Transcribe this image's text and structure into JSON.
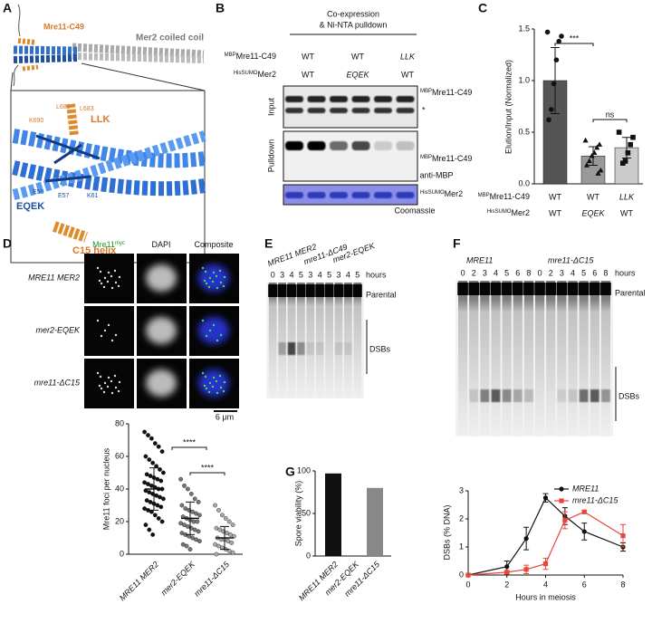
{
  "panels": {
    "A": {
      "label": "A",
      "mre11": "Mre11-C49",
      "mer2": "Mer2 coiled coil",
      "llk": "LLK",
      "eqek": "EQEK",
      "c15": "C15 helix",
      "residues": [
        "L686",
        "L683",
        "K690",
        "E50",
        "E57",
        "K61"
      ]
    },
    "B": {
      "label": "B",
      "header": [
        "Co-expression",
        "& Ni-NTA pulldown"
      ],
      "row1": {
        "sup": "MBP",
        "name": "Mre11-C49",
        "lanes": [
          "WT",
          "WT",
          "LLK"
        ]
      },
      "row2": {
        "sup": "HisSUMO",
        "name": "Mer2",
        "lanes": [
          "WT",
          "EQEK",
          "WT"
        ]
      },
      "input": "Input",
      "pulldown": "Pulldown",
      "star": "*",
      "band1": {
        "sup": "MBP",
        "name": "Mre11-C49"
      },
      "band2": {
        "sup": "MBP",
        "name": "Mre11-C49"
      },
      "antibody": "anti-MBP",
      "band3": {
        "sup": "HisSUMO",
        "name": "Mer2"
      },
      "stain": "Coomassie"
    },
    "C": {
      "label": "C"
    },
    "D": {
      "label": "D",
      "columns": [
        {
          "name": "Mre11",
          "sup": "myc"
        },
        {
          "name": "DAPI"
        },
        {
          "name": "Composite"
        }
      ],
      "rows": [
        "MRE11 MER2",
        "mer2-EQEK",
        "mre11-ΔC15"
      ],
      "scale": "6 μm"
    },
    "E": {
      "label": "E",
      "strains": [
        "MRE11 MER2",
        "mre11-ΔC49",
        "mer2-EQEK"
      ],
      "lanes": [
        0,
        3,
        4,
        5,
        3,
        4,
        5,
        3,
        4,
        5
      ],
      "hours": "hours",
      "parental": "Parental",
      "dsbs": "DSBs"
    },
    "F": {
      "label": "F",
      "strains": [
        "MRE11",
        "mre11-ΔC15"
      ],
      "lanes": [
        0,
        2,
        3,
        4,
        5,
        6,
        8,
        0,
        2,
        3,
        4,
        5,
        6,
        8
      ],
      "hours": "hours",
      "parental": "Parental",
      "dsbs": "DSBs"
    },
    "G": {
      "label": "G"
    }
  },
  "chart_data": [
    {
      "type": "bar",
      "ylabel": "Elution/Input (Normalized)",
      "row_labels": [
        {
          "sup": "MBP",
          "name": "Mre11-C49",
          "values": [
            "WT",
            "WT",
            "LLK"
          ]
        },
        {
          "sup": "HisSUMO",
          "name": "Mer2",
          "values": [
            "WT",
            "EQEK",
            "WT"
          ]
        }
      ],
      "values": [
        1.0,
        0.27,
        0.35
      ],
      "errors": [
        0.32,
        0.09,
        0.1
      ],
      "colors": [
        "#555555",
        "#999999",
        "#cccccc"
      ],
      "markers": [
        "circle",
        "triangle",
        "square"
      ],
      "points": [
        [
          1.47,
          1.43,
          1.38,
          1.2,
          0.97,
          0.72,
          0.62
        ],
        [
          0.42,
          0.38,
          0.35,
          0.3,
          0.27,
          0.22,
          0.18,
          0.13,
          0.1
        ],
        [
          0.5,
          0.45,
          0.38,
          0.3,
          0.22,
          0.2
        ]
      ],
      "ylim": [
        0,
        1.5
      ],
      "yticks": [
        {
          "value": 0,
          "label": "0.0"
        },
        {
          "value": 0.5,
          "label": "0.5"
        },
        {
          "value": 1,
          "label": "1.0"
        },
        {
          "value": 1.5,
          "label": "1.5"
        }
      ],
      "significance": [
        "***",
        "ns"
      ]
    },
    {
      "type": "dot",
      "ylabel": "Mre11 foci per nucleus",
      "categories": [
        "MRE11 MER2",
        "mer2-EQEK",
        "mre11-ΔC15"
      ],
      "values": [
        40,
        22,
        10
      ],
      "errors": [
        13,
        10,
        7
      ],
      "points": [
        [
          75,
          73,
          71,
          68,
          66,
          63,
          60,
          58,
          56,
          54,
          52,
          50,
          49,
          48,
          47,
          46,
          45,
          44,
          43,
          42,
          41,
          40,
          40,
          39,
          38,
          37,
          36,
          35,
          34,
          33,
          32,
          31,
          30,
          29,
          28,
          27,
          26,
          24,
          22,
          20,
          18,
          15,
          12
        ],
        [
          46,
          42,
          40,
          37,
          34,
          32,
          30,
          28,
          27,
          26,
          25,
          24,
          23,
          22,
          21,
          20,
          20,
          19,
          18,
          17,
          16,
          15,
          14,
          13,
          12,
          11,
          10,
          9,
          8,
          6,
          5,
          3
        ],
        [
          30,
          27,
          24,
          22,
          20,
          18,
          16,
          15,
          14,
          13,
          12,
          11,
          10,
          9,
          9,
          8,
          7,
          6,
          5,
          4,
          3,
          2,
          1,
          0
        ]
      ],
      "colors": [
        "#111111",
        "#777777",
        "#aaaaaa"
      ],
      "ylim": [
        0,
        80
      ],
      "yticks": [
        0,
        20,
        40,
        60,
        80
      ],
      "significance": [
        "****",
        "****"
      ]
    },
    {
      "type": "bar",
      "ylabel": "Spore viability (%)",
      "categories": [
        "MRE11 MER2",
        "mer2-EQEK",
        "mre11-ΔC15"
      ],
      "values": [
        97,
        0,
        80
      ],
      "colors": [
        "#111111",
        "#111111",
        "#888888"
      ],
      "ylim": [
        0,
        100
      ],
      "yticks": [
        0,
        50,
        100
      ]
    },
    {
      "type": "line",
      "xlabel": "Hours in meiosis",
      "ylabel": "DSBs (% DNA)",
      "x": [
        0,
        2,
        3,
        4,
        5,
        6,
        8
      ],
      "series": [
        {
          "name": "MRE11",
          "color": "#111111",
          "marker": "circle",
          "values": [
            0,
            0.3,
            1.3,
            2.75,
            2.1,
            1.55,
            1.0
          ],
          "errors": [
            0,
            0.2,
            0.4,
            0.15,
            0.3,
            0.3,
            0.15
          ]
        },
        {
          "name": "mre11-ΔC15",
          "color": "#e8453c",
          "marker": "square",
          "values": [
            0,
            0.1,
            0.2,
            0.4,
            1.95,
            2.25,
            1.4
          ],
          "errors": [
            0,
            0.05,
            0.15,
            0.2,
            0.3,
            0.05,
            0.4
          ]
        }
      ],
      "xlim": [
        0,
        8
      ],
      "xticks": [
        0,
        2,
        4,
        6,
        8
      ],
      "ylim": [
        0,
        3
      ],
      "yticks": [
        0,
        1,
        2,
        3
      ],
      "legend": "top-right"
    }
  ]
}
